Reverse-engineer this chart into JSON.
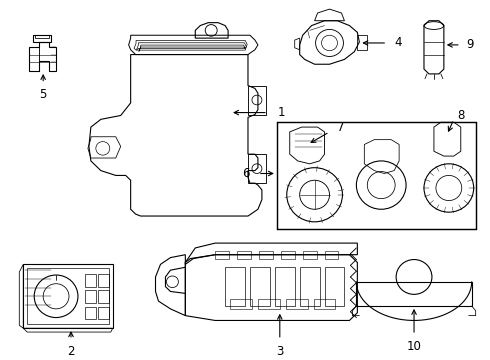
{
  "background_color": "#ffffff",
  "line_color": "#000000",
  "lw": 0.8,
  "figsize": [
    4.9,
    3.6
  ],
  "dpi": 100
}
